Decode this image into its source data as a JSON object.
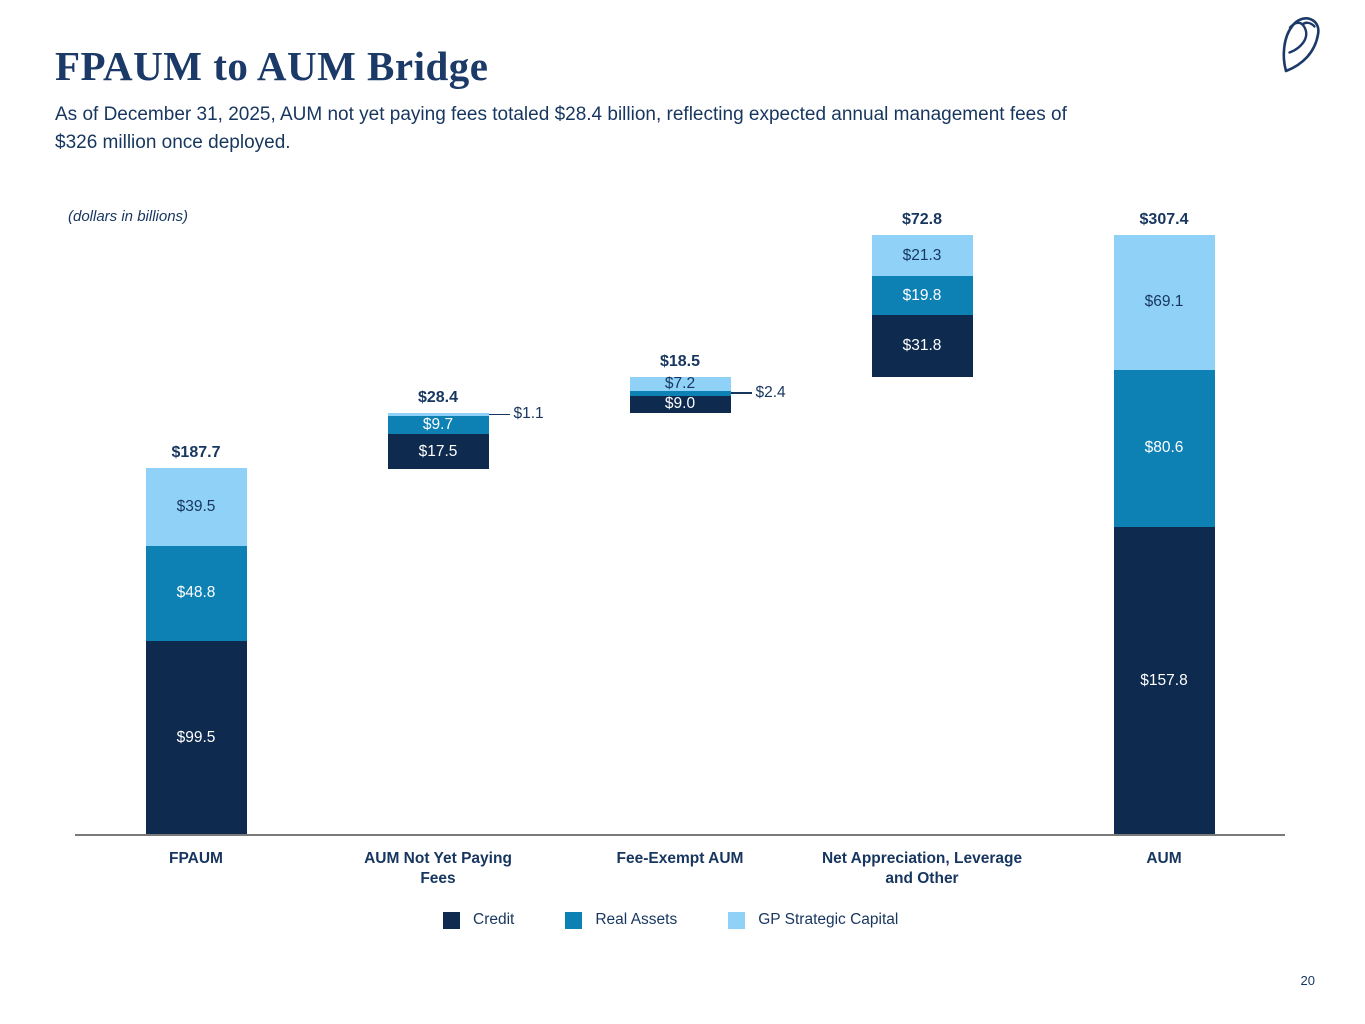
{
  "page": {
    "number": "20"
  },
  "header": {
    "title": "FPAUM to AUM Bridge",
    "subtitle_line1": "As of December 31, 2025, AUM not yet paying fees totaled $28.4 billion, reflecting expected annual management fees of",
    "subtitle_line2": "$326 million once deployed.",
    "logo_icon": "owl-logo"
  },
  "colors": {
    "title_text": "#1c3a68",
    "body_text": "#17365f",
    "axis": "#7a7a7a",
    "credit": "#0e2a4f",
    "real_assets": "#0d80b4",
    "gp_strategic_capital": "#90d1f8"
  },
  "chart_data": {
    "type": "bar",
    "variant": "stacked-waterfall-bridge",
    "title": "FPAUM to AUM Bridge",
    "note": "(dollars in billions)",
    "grid": false,
    "ylim": [
      0,
      307.4
    ],
    "legend_position": "bottom",
    "categories": [
      "FPAUM",
      "AUM Not Yet Paying Fees",
      "Fee-Exempt AUM",
      "Net Appreciation, Leverage and Other",
      "AUM"
    ],
    "category_lines": [
      [
        "FPAUM"
      ],
      [
        "AUM Not Yet Paying",
        "Fees"
      ],
      [
        "Fee-Exempt AUM"
      ],
      [
        "Net Appreciation, Leverage",
        "and Other"
      ],
      [
        "AUM"
      ]
    ],
    "series": [
      {
        "name": "Credit",
        "color": "#0e2a4f",
        "label_color": "#ffffff",
        "values": [
          99.5,
          17.5,
          9.0,
          31.8,
          157.8
        ]
      },
      {
        "name": "Real Assets",
        "color": "#0d80b4",
        "label_color": "#ffffff",
        "values": [
          48.8,
          9.7,
          2.4,
          19.8,
          80.6
        ]
      },
      {
        "name": "GP Strategic Capital",
        "color": "#90d1f8",
        "label_color": "#17365f",
        "values": [
          39.5,
          1.1,
          7.2,
          21.3,
          69.1
        ]
      }
    ],
    "bases": [
      0,
      187.7,
      216.1,
      234.6,
      0
    ],
    "totals": [
      187.7,
      28.4,
      18.5,
      72.8,
      307.4
    ],
    "total_labels": [
      "$187.7",
      "$28.4",
      "$18.5",
      "$72.8",
      "$307.4"
    ],
    "callouts": [
      {
        "bar": 1,
        "series": 2,
        "label": "$1.1"
      },
      {
        "bar": 2,
        "series": 1,
        "label": "$2.4"
      }
    ]
  }
}
